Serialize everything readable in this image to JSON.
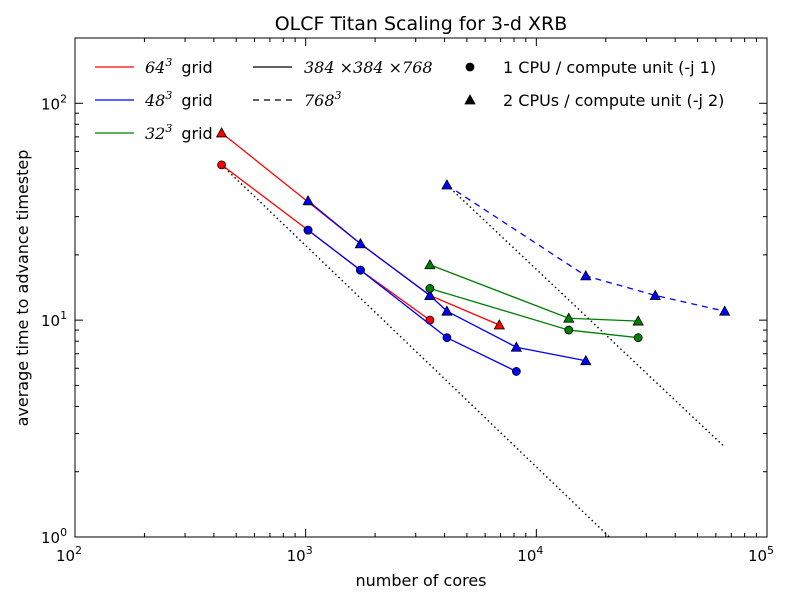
{
  "chart_data": {
    "type": "line",
    "title": "OLCF Titan Scaling for 3-d XRB",
    "xlabel": "number of cores",
    "ylabel": "average time to advance timestep",
    "x_scale": "log",
    "y_scale": "log",
    "xlim": [
      100,
      100000
    ],
    "ylim": [
      1,
      200
    ],
    "x_ticks": [
      {
        "value": 100,
        "base": "10",
        "exp": "2"
      },
      {
        "value": 1000,
        "base": "10",
        "exp": "3"
      },
      {
        "value": 10000,
        "base": "10",
        "exp": "4"
      },
      {
        "value": 100000,
        "base": "10",
        "exp": "5"
      }
    ],
    "y_ticks": [
      {
        "value": 1,
        "base": "10",
        "exp": "0"
      },
      {
        "value": 10,
        "base": "10",
        "exp": "1"
      },
      {
        "value": 100,
        "base": "10",
        "exp": "2"
      }
    ],
    "grid": false,
    "legend": {
      "placement": "top",
      "grids": [
        {
          "base": "64",
          "exp": "3",
          "suffix": "grid",
          "color": "#ff0000"
        },
        {
          "base": "48",
          "exp": "3",
          "suffix": "grid",
          "color": "#0000ff"
        },
        {
          "base": "32",
          "exp": "3",
          "suffix": "grid",
          "color": "#008000"
        }
      ],
      "linestyles": [
        {
          "label": "384 ×384 ×768",
          "style": "solid"
        },
        {
          "base": "768",
          "exp": "3",
          "style": "dashed"
        }
      ],
      "markers": [
        {
          "label": "1 CPU / compute unit (-j 1)",
          "marker": "circle"
        },
        {
          "label": "2 CPUs / compute unit (-j 2)",
          "marker": "triangle"
        }
      ]
    },
    "series": [
      {
        "grid": "64^3",
        "color": "#ff0000",
        "style": "solid",
        "marker": "circle",
        "x": [
          432,
          1024,
          1728,
          3456
        ],
        "y": [
          52,
          26,
          17,
          10
        ]
      },
      {
        "grid": "64^3",
        "color": "#ff0000",
        "style": "solid",
        "marker": "triangle",
        "x": [
          432,
          1728,
          3456,
          6912
        ],
        "y": [
          73,
          22.5,
          13,
          9.5
        ]
      },
      {
        "grid": "48^3",
        "color": "#0000ff",
        "style": "solid",
        "marker": "circle",
        "x": [
          1024,
          1728,
          4096,
          8192
        ],
        "y": [
          26,
          17,
          8.3,
          5.8
        ]
      },
      {
        "grid": "48^3",
        "color": "#0000ff",
        "style": "solid",
        "marker": "triangle",
        "x": [
          1024,
          1728,
          3456,
          4096,
          8192,
          16384
        ],
        "y": [
          35.5,
          22.5,
          13,
          11,
          7.5,
          6.5
        ]
      },
      {
        "grid": "48^3",
        "color": "#0000ff",
        "style": "dashed",
        "marker": "triangle",
        "x": [
          4096,
          16384,
          32768,
          65536
        ],
        "y": [
          42,
          16,
          13,
          11
        ]
      },
      {
        "grid": "32^3",
        "color": "#008000",
        "style": "solid",
        "marker": "circle",
        "x": [
          3456,
          13824,
          27648
        ],
        "y": [
          14,
          9,
          8.3
        ]
      },
      {
        "grid": "32^3",
        "color": "#008000",
        "style": "solid",
        "marker": "triangle",
        "x": [
          3456,
          13824,
          27648
        ],
        "y": [
          18,
          10.2,
          9.9
        ]
      }
    ],
    "ideal_scaling": [
      {
        "style": "dotted",
        "color": "#000000",
        "x": [
          432,
          20736
        ],
        "y": [
          52,
          1
        ]
      },
      {
        "style": "dotted",
        "color": "#000000",
        "x": [
          4096,
          65536
        ],
        "y": [
          42,
          2.6
        ]
      }
    ]
  }
}
